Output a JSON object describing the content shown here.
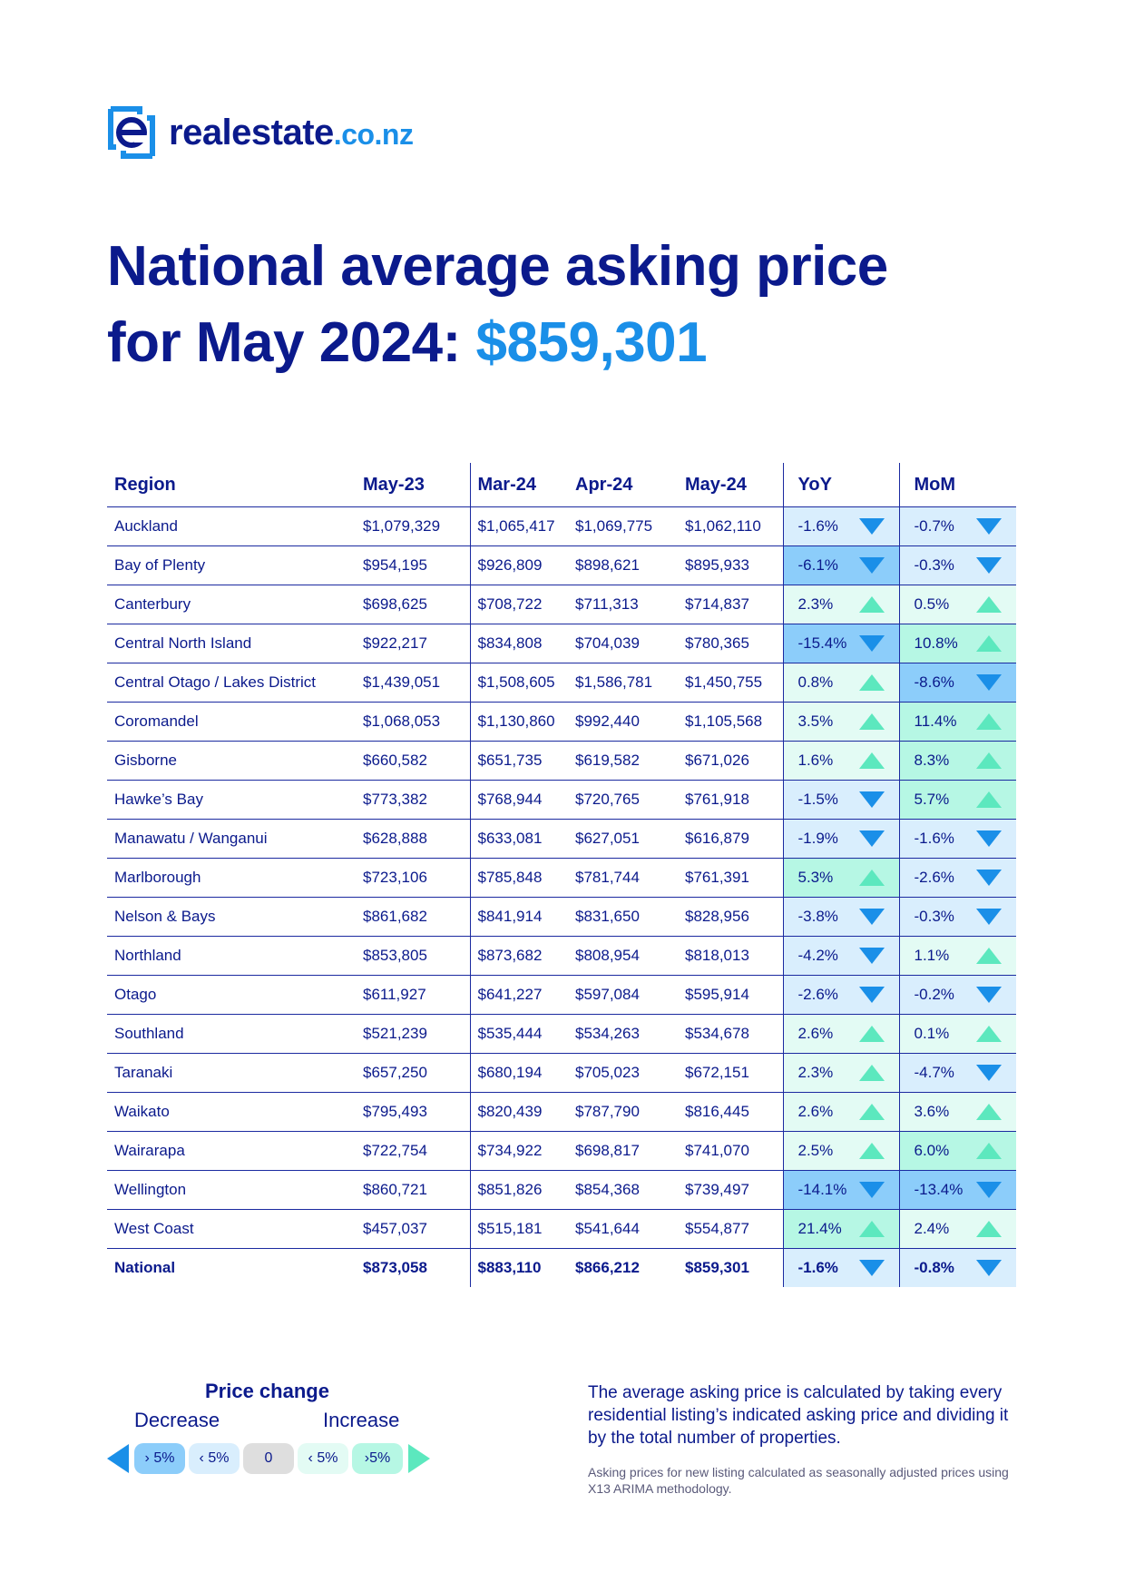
{
  "brand": {
    "word": "realestate",
    "tld": ".co.nz"
  },
  "headline": {
    "line1": "National average asking price",
    "line2_prefix": "for May 2024: ",
    "price": "$859,301"
  },
  "table": {
    "headers": {
      "region": "Region",
      "may23": "May-23",
      "mar24": "Mar-24",
      "apr24": "Apr-24",
      "may24": "May-24",
      "yoy": "YoY",
      "mom": "MoM"
    },
    "rows": [
      {
        "region": "Auckland",
        "may23": "$1,079,329",
        "mar24": "$1,065,417",
        "apr24": "$1,069,775",
        "may24": "$1,062,110",
        "yoy": "-1.6%",
        "mom": "-0.7%"
      },
      {
        "region": "Bay of Plenty",
        "may23": "$954,195",
        "mar24": "$926,809",
        "apr24": "$898,621",
        "may24": "$895,933",
        "yoy": "-6.1%",
        "mom": "-0.3%"
      },
      {
        "region": "Canterbury",
        "may23": "$698,625",
        "mar24": "$708,722",
        "apr24": "$711,313",
        "may24": "$714,837",
        "yoy": "2.3%",
        "mom": "0.5%"
      },
      {
        "region": "Central North Island",
        "may23": "$922,217",
        "mar24": "$834,808",
        "apr24": "$704,039",
        "may24": "$780,365",
        "yoy": "-15.4%",
        "mom": "10.8%"
      },
      {
        "region": "Central Otago / Lakes District",
        "may23": "$1,439,051",
        "mar24": "$1,508,605",
        "apr24": "$1,586,781",
        "may24": "$1,450,755",
        "yoy": "0.8%",
        "mom": "-8.6%"
      },
      {
        "region": "Coromandel",
        "may23": "$1,068,053",
        "mar24": "$1,130,860",
        "apr24": "$992,440",
        "may24": "$1,105,568",
        "yoy": "3.5%",
        "mom": "11.4%"
      },
      {
        "region": "Gisborne",
        "may23": "$660,582",
        "mar24": "$651,735",
        "apr24": "$619,582",
        "may24": "$671,026",
        "yoy": "1.6%",
        "mom": "8.3%"
      },
      {
        "region": "Hawke’s Bay",
        "may23": "$773,382",
        "mar24": "$768,944",
        "apr24": "$720,765",
        "may24": "$761,918",
        "yoy": "-1.5%",
        "mom": "5.7%"
      },
      {
        "region": "Manawatu / Wanganui",
        "may23": "$628,888",
        "mar24": "$633,081",
        "apr24": "$627,051",
        "may24": "$616,879",
        "yoy": "-1.9%",
        "mom": "-1.6%"
      },
      {
        "region": "Marlborough",
        "may23": "$723,106",
        "mar24": "$785,848",
        "apr24": "$781,744",
        "may24": "$761,391",
        "yoy": "5.3%",
        "mom": "-2.6%"
      },
      {
        "region": "Nelson & Bays",
        "may23": "$861,682",
        "mar24": "$841,914",
        "apr24": "$831,650",
        "may24": "$828,956",
        "yoy": "-3.8%",
        "mom": "-0.3%"
      },
      {
        "region": "Northland",
        "may23": "$853,805",
        "mar24": "$873,682",
        "apr24": "$808,954",
        "may24": "$818,013",
        "yoy": "-4.2%",
        "mom": "1.1%"
      },
      {
        "region": "Otago",
        "may23": "$611,927",
        "mar24": "$641,227",
        "apr24": "$597,084",
        "may24": "$595,914",
        "yoy": "-2.6%",
        "mom": "-0.2%"
      },
      {
        "region": "Southland",
        "may23": "$521,239",
        "mar24": "$535,444",
        "apr24": "$534,263",
        "may24": "$534,678",
        "yoy": "2.6%",
        "mom": "0.1%"
      },
      {
        "region": "Taranaki",
        "may23": "$657,250",
        "mar24": "$680,194",
        "apr24": "$705,023",
        "may24": "$672,151",
        "yoy": "2.3%",
        "mom": "-4.7%"
      },
      {
        "region": "Waikato",
        "may23": "$795,493",
        "mar24": "$820,439",
        "apr24": "$787,790",
        "may24": "$816,445",
        "yoy": "2.6%",
        "mom": "3.6%"
      },
      {
        "region": "Wairarapa",
        "may23": "$722,754",
        "mar24": "$734,922",
        "apr24": "$698,817",
        "may24": "$741,070",
        "yoy": "2.5%",
        "mom": "6.0%"
      },
      {
        "region": "Wellington",
        "may23": "$860,721",
        "mar24": "$851,826",
        "apr24": "$854,368",
        "may24": "$739,497",
        "yoy": "-14.1%",
        "mom": "-13.4%"
      },
      {
        "region": "West Coast",
        "may23": "$457,037",
        "mar24": "$515,181",
        "apr24": "$541,644",
        "may24": "$554,877",
        "yoy": "21.4%",
        "mom": "2.4%"
      },
      {
        "region": "National",
        "may23": "$873,058",
        "mar24": "$883,110",
        "apr24": "$866,212",
        "may24": "$859,301",
        "yoy": "-1.6%",
        "mom": "-0.8%",
        "national": true
      }
    ]
  },
  "legend": {
    "title": "Price change",
    "decrease_label": "Decrease",
    "increase_label": "Increase",
    "pills": [
      "› 5%",
      "‹ 5%",
      "0",
      "‹ 5%",
      "›5%"
    ]
  },
  "note": {
    "main": "The average asking price is calculated by taking every residential listing’s indicated asking price and dividing it by the total number of properties.",
    "small": "Asking prices for new listing calculated as seasonally adjusted prices using X13 ARIMA methodology."
  },
  "colors": {
    "navy": "#0b1a8c",
    "accent_blue": "#1a8fe8",
    "increase_green": "#5ce8be",
    "decrease_big": "#8ccdfa",
    "decrease_small": "#d9eefd",
    "zero": "#dedede",
    "increase_small": "#e3fbf4",
    "increase_big": "#b6f7e4"
  }
}
